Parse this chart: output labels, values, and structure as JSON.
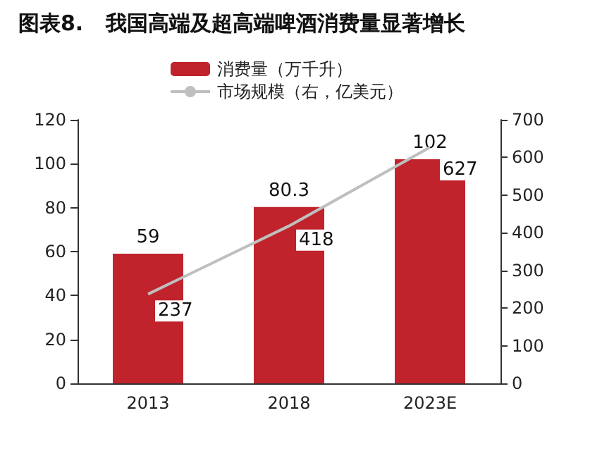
{
  "chart_data": {
    "type": "bar",
    "title": "图表8.   我国高端及超高端啤酒消费量显著增长",
    "categories": [
      "2013",
      "2018",
      "2023E"
    ],
    "series": [
      {
        "name": "消费量（万千升）",
        "color": "#c0232c",
        "values": [
          59,
          80.3,
          102
        ]
      },
      {
        "name": "市场规模（右，亿美元）",
        "type": "line",
        "axis": "y2",
        "color": "#bfbfbf",
        "values": [
          237,
          418,
          627
        ]
      }
    ],
    "ylim": [
      0,
      120
    ],
    "yticks": [
      0,
      20,
      40,
      60,
      80,
      100,
      120
    ],
    "y2lim": [
      0,
      700
    ],
    "y2ticks": [
      0,
      100,
      200,
      300,
      400,
      500,
      600,
      700
    ],
    "data_labels": true,
    "legend": "top left",
    "marker": "none",
    "grid": false
  }
}
